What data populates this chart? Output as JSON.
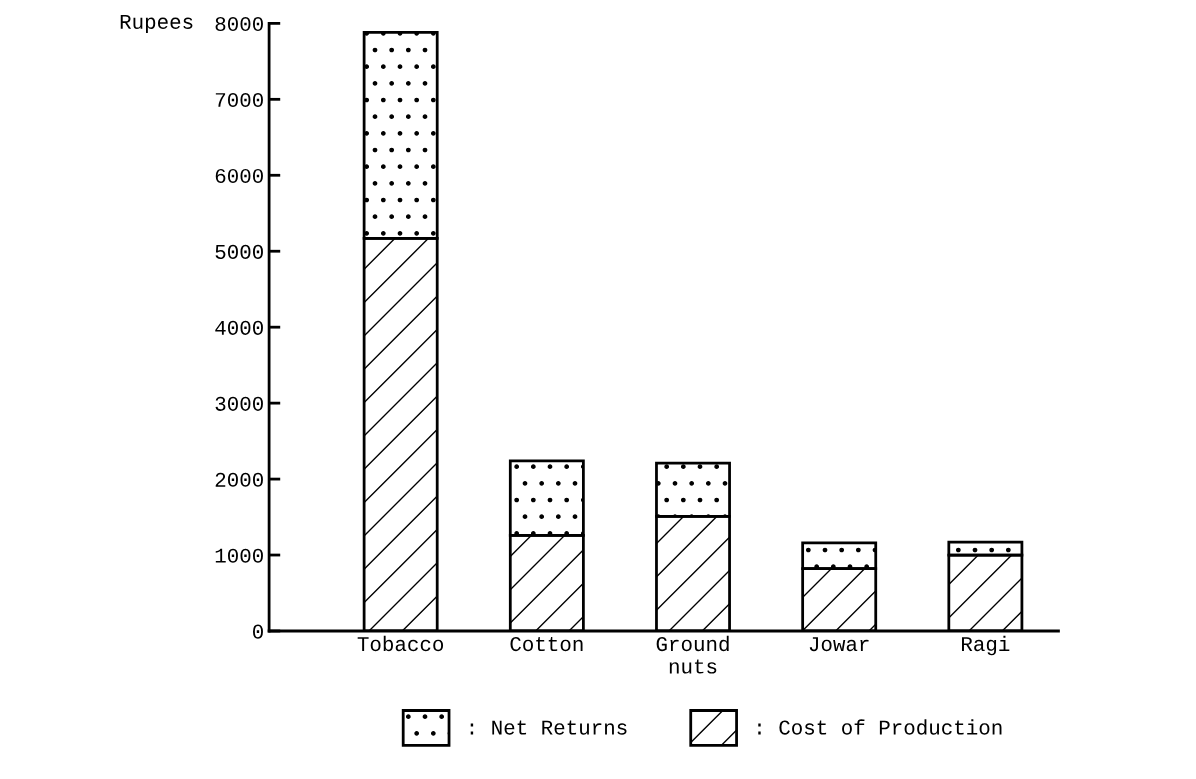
{
  "chart_data": {
    "type": "bar",
    "ylabel": "Rupees",
    "stacked": true,
    "categories": [
      "Tobacco",
      "Cotton",
      "Ground\nnuts",
      "Jowar",
      "Ragi"
    ],
    "series": [
      {
        "name": ": Cost of Production",
        "color": "#ffffff",
        "values": [
          5170,
          1260,
          1510,
          820,
          1000
        ]
      },
      {
        "name": ": Net Returns",
        "color": "#ffffff",
        "values": [
          2710,
          980,
          700,
          340,
          170
        ]
      }
    ],
    "ylim": [
      0,
      8000
    ],
    "yticks": [
      0,
      1000,
      2000,
      3000,
      4000,
      5000,
      6000,
      7000,
      8000
    ],
    "grid": false,
    "legend": "bottom"
  }
}
